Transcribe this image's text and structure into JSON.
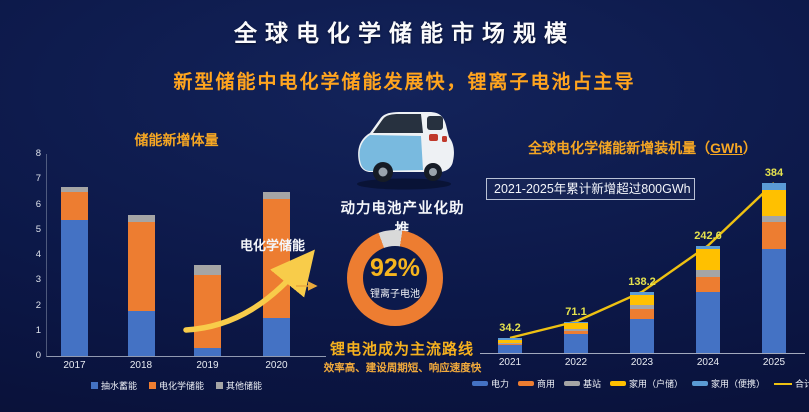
{
  "header": {
    "title": "全球电化学储能市场规模",
    "subtitle": "新型储能中电化学储能发展快，锂离子电池占主导"
  },
  "middle": {
    "caption": "动力电池产业化助推",
    "headline": "锂电池成为主流路线",
    "subline": "效率高、建设周期短、响应速度快"
  },
  "colors": {
    "background": "#0c1848",
    "accent_gold": "#f5a623",
    "subtitle_orange": "#ffa41e",
    "value_label_yellow": "#e5e24e",
    "bar_blue": "#4472c4",
    "bar_orange": "#ed7d31",
    "bar_gray": "#a5a5a5",
    "bar_yellow": "#ffc000",
    "bar_lightblue": "#5b9bd5",
    "total_line_gold": "#eec112",
    "arrow_gold": "#f8cc4a"
  },
  "chart_data": [
    {
      "type": "bar",
      "stacked": true,
      "title": "储能新增体量",
      "categories": [
        "2017",
        "2018",
        "2019",
        "2020"
      ],
      "series": [
        {
          "name": "抽水蓄能",
          "color": "#4472c4",
          "values": [
            5.4,
            1.8,
            0.3,
            1.5
          ]
        },
        {
          "name": "电化学储能",
          "color": "#ed7d31",
          "values": [
            1.1,
            3.5,
            2.9,
            4.7
          ]
        },
        {
          "name": "其他储能",
          "color": "#a5a5a5",
          "values": [
            0.2,
            0.3,
            0.4,
            0.3
          ]
        }
      ],
      "ylim": [
        0,
        8
      ],
      "yticks": [
        0,
        1,
        2,
        3,
        4,
        5,
        6,
        7,
        8
      ],
      "annotation": "电化学储能",
      "legend_position": "bottom",
      "grid": false
    },
    {
      "type": "pie",
      "donut": true,
      "slices": [
        {
          "label": "锂离子电池",
          "value": 92,
          "color": "#ed7d31"
        },
        {
          "label": "",
          "value": 8,
          "color": "#d9d9d9"
        }
      ],
      "center_value": "92%",
      "center_label": "锂离子电池"
    },
    {
      "type": "bar",
      "stacked": true,
      "title_prefix": "全球电化学储能新增装机量（",
      "title_unit": "GWh",
      "title_suffix": "）",
      "callout": "2021-2025年累计新增超过800GWh",
      "categories": [
        "2021",
        "2022",
        "2023",
        "2024",
        "2025"
      ],
      "series": [
        {
          "name": "电力",
          "color": "#4472c4",
          "values": [
            17,
            42.7,
            76.8,
            136.8,
            235
          ]
        },
        {
          "name": "商用",
          "color": "#ed7d31",
          "values": [
            2.8,
            7.9,
            23,
            34.7,
            60
          ]
        },
        {
          "name": "基站",
          "color": "#a5a5a5",
          "values": [
            2.9,
            4.7,
            9.2,
            16.6,
            15
          ]
        },
        {
          "name": "家用（户储）",
          "color": "#ffc000",
          "values": [
            5.8,
            11.8,
            23,
            47,
            59
          ]
        },
        {
          "name": "家用（便携）",
          "color": "#5b9bd5",
          "values": [
            5.7,
            4,
            6.2,
            7.5,
            15
          ]
        }
      ],
      "line_series": {
        "name": "合计",
        "color": "#eec112",
        "values": [
          34.2,
          71.1,
          138.2,
          242.6,
          384
        ]
      },
      "legend_position": "bottom",
      "grid": false
    }
  ]
}
